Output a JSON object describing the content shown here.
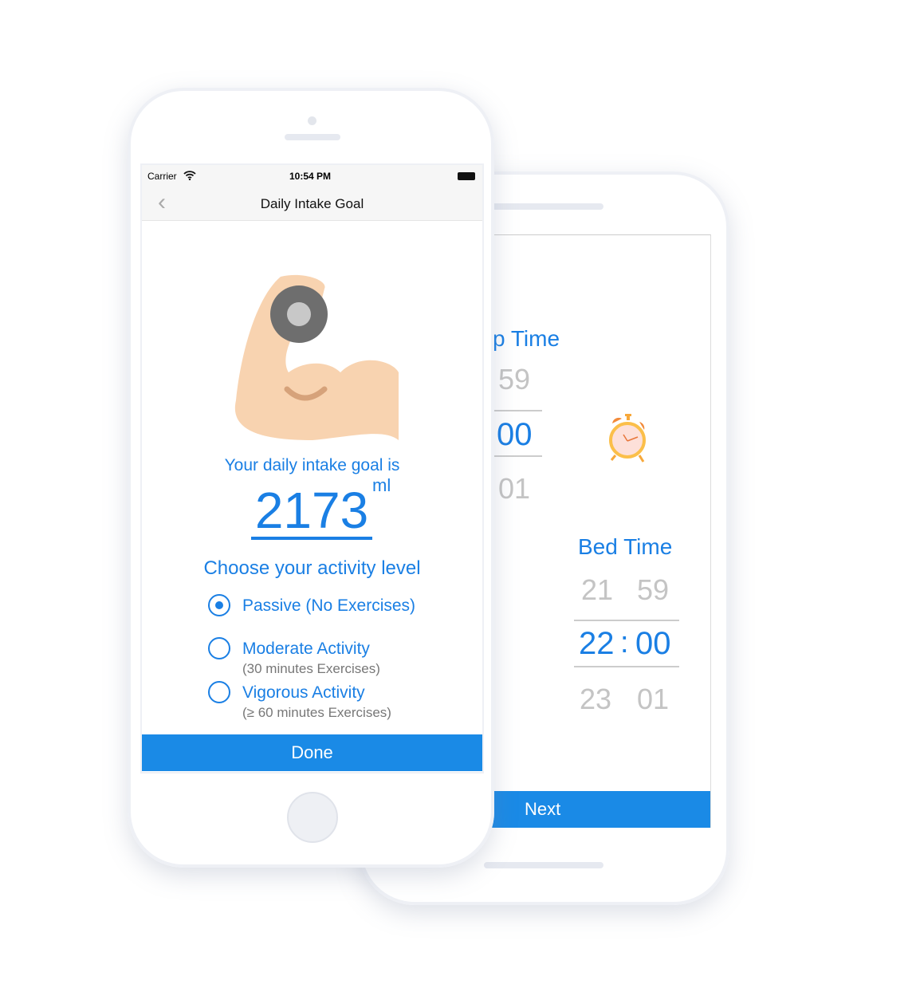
{
  "front": {
    "status": {
      "carrier": "Carrier",
      "time": "10:54 PM"
    },
    "nav": {
      "title": "Daily Intake Goal"
    },
    "goal_label": "Your daily intake goal is",
    "goal_value": "2173",
    "goal_unit": "ml",
    "activity_heading": "Choose your activity level",
    "options": [
      {
        "label": "Passive (No Exercises)",
        "sub": "",
        "selected": true
      },
      {
        "label": "Moderate Activity",
        "sub": "(30 minutes Exercises)",
        "selected": false
      },
      {
        "label": "Vigorous Activity",
        "sub": "(≥ 60 minutes Exercises)",
        "selected": false
      }
    ],
    "done_label": "Done"
  },
  "back": {
    "wake_title": "p Time",
    "wake_minutes": [
      "59",
      "00",
      "01"
    ],
    "bed_title": "Bed Time",
    "bed_hours": [
      "21",
      "22",
      "23"
    ],
    "bed_minutes": [
      "59",
      "00",
      "01"
    ],
    "separator": ":",
    "next_label": "Next"
  },
  "colors": {
    "accent": "#1a7fe4",
    "button": "#1a8ae6",
    "skin": "#f8d3b0",
    "dumbbell": "#6e6e6e"
  }
}
